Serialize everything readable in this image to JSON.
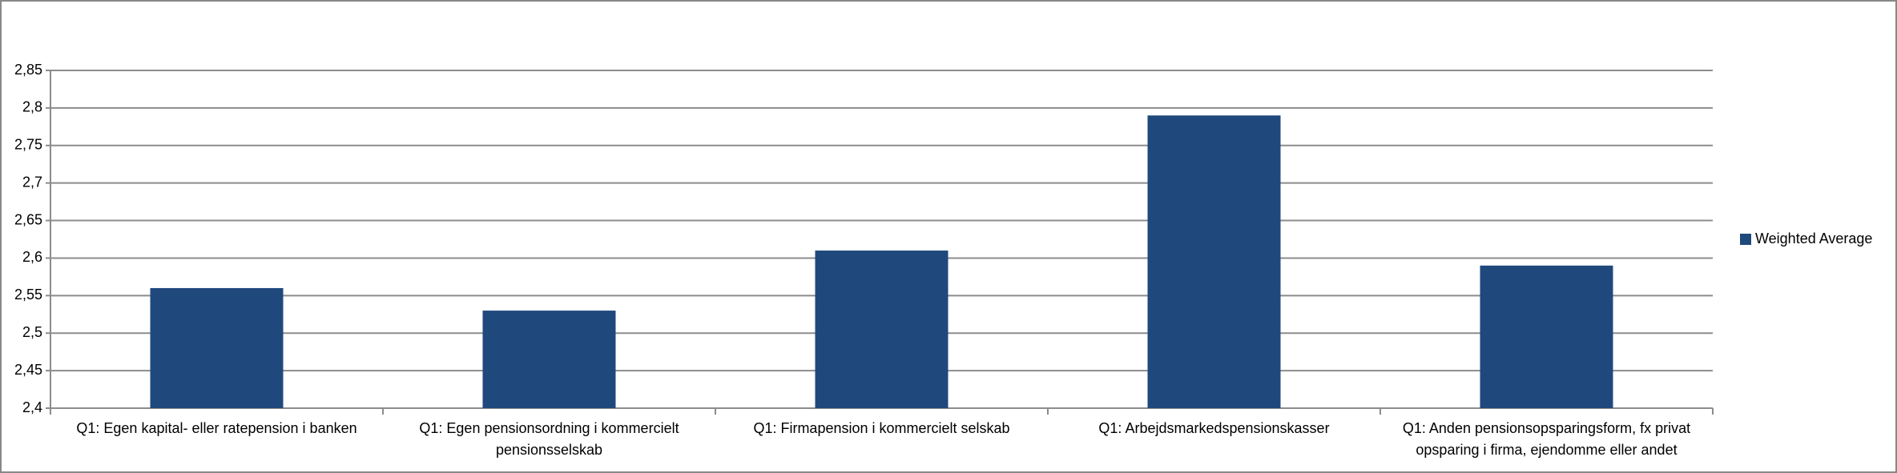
{
  "chart_data": {
    "type": "bar",
    "categories": [
      "Q1: Egen kapital- eller ratepension i banken",
      "Q1: Egen pensionsordning i kommercielt pensionsselskab",
      "Q1: Firmapension i kommercielt selskab",
      "Q1: Arbejdsmarkedspensionskasser",
      "Q1: Anden pensionsopsparingsform, fx privat opsparing i firma, ejendomme eller andet"
    ],
    "series": [
      {
        "name": "Weighted Average",
        "color": "#1f497d",
        "values": [
          2.56,
          2.53,
          2.61,
          2.79,
          2.59
        ]
      }
    ],
    "ylim": [
      2.4,
      2.85
    ],
    "yticks": [
      {
        "value": 2.4,
        "label": "2,4"
      },
      {
        "value": 2.45,
        "label": "2,45"
      },
      {
        "value": 2.5,
        "label": "2,5"
      },
      {
        "value": 2.55,
        "label": "2,55"
      },
      {
        "value": 2.6,
        "label": "2,6"
      },
      {
        "value": 2.65,
        "label": "2,65"
      },
      {
        "value": 2.7,
        "label": "2,7"
      },
      {
        "value": 2.75,
        "label": "2,75"
      },
      {
        "value": 2.8,
        "label": "2,8"
      },
      {
        "value": 2.85,
        "label": "2,85"
      }
    ],
    "grid": true,
    "legend": "right"
  }
}
